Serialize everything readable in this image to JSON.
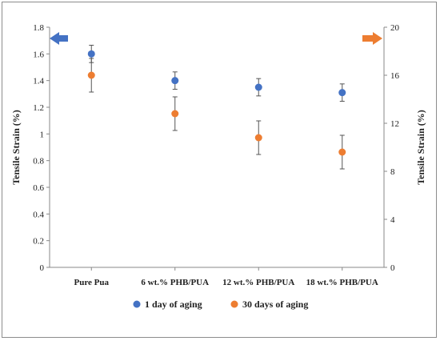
{
  "chart_data": {
    "type": "scatter",
    "categories": [
      "Pure Pua",
      "6 wt.% PHB/PUA",
      "12 wt.% PHB/PUA",
      "18 wt.% PHB/PUA"
    ],
    "series": [
      {
        "name": "1 day of aging",
        "axis": "left",
        "color": "#4472C4",
        "values": [
          1.6,
          1.4,
          1.35,
          1.31
        ],
        "error": [
          0.065,
          0.065,
          0.065,
          0.065
        ]
      },
      {
        "name": "30 days of aging",
        "axis": "right",
        "color": "#ED7D31",
        "values": [
          16.0,
          12.8,
          10.8,
          9.6
        ],
        "error": [
          1.4,
          1.4,
          1.4,
          1.4
        ]
      }
    ],
    "ylabel_left": "Tensile Strain (%)",
    "ylabel_right": "Tensile Strain (%)",
    "ylim_left": [
      0,
      1.8
    ],
    "ylim_right": [
      0,
      20
    ],
    "yticks_left": [
      "0",
      "0.2",
      "0.4",
      "0.6",
      "0.8",
      "1",
      "1.2",
      "1.4",
      "1.6",
      "1.8"
    ],
    "yticks_right": [
      "0",
      "4",
      "8",
      "12",
      "16",
      "20"
    ],
    "grid": false,
    "legend_position": "bottom",
    "arrow_left_color": "#4472C4",
    "arrow_right_color": "#ED7D31"
  }
}
